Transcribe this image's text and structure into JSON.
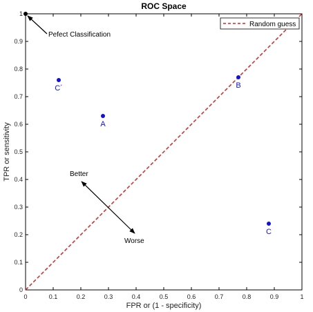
{
  "chart_data": {
    "type": "scatter",
    "title": "ROC Space",
    "xlabel": "FPR or (1 - specificity)",
    "ylabel": "TPR or sensitivity",
    "xlim": [
      0,
      1
    ],
    "ylim": [
      0,
      1
    ],
    "xticks": [
      "0",
      "0.1",
      "0.2",
      "0.3",
      "0.4",
      "0.5",
      "0.6",
      "0.7",
      "0.8",
      "0.9",
      "1"
    ],
    "yticks": [
      "0",
      "0.1",
      "0.2",
      "0.3",
      "0.4",
      "0.5",
      "0.6",
      "0.7",
      "0.8",
      "0.9",
      "1"
    ],
    "grid": false,
    "legend": {
      "position": "top-right",
      "entries": [
        "Random guess"
      ]
    },
    "series": [
      {
        "name": "Random guess",
        "type": "line",
        "style": "dashed",
        "color": "#e32020",
        "x": [
          0,
          1
        ],
        "y": [
          0,
          1
        ]
      }
    ],
    "points": [
      {
        "label": "A",
        "x": 0.28,
        "y": 0.63,
        "color": "#1010d8"
      },
      {
        "label": "B",
        "x": 0.77,
        "y": 0.77,
        "color": "#1010d8"
      },
      {
        "label": "C",
        "x": 0.88,
        "y": 0.24,
        "color": "#1010d8"
      },
      {
        "label": "C´",
        "x": 0.12,
        "y": 0.76,
        "color": "#1010d8"
      }
    ],
    "perfect_point": {
      "x": 0,
      "y": 1,
      "color": "#000000"
    },
    "annotations": [
      {
        "text": "Pefect Classification",
        "arrow_from": [
          0.085,
          0.93
        ],
        "arrow_to": [
          0.005,
          0.995
        ]
      },
      {
        "text": "Better",
        "arrow_from": [
          0.2,
          0.35
        ],
        "arrow_to": [
          0.2,
          0.35
        ]
      },
      {
        "text": "Worse",
        "arrow_from": [
          0.4,
          0.2
        ],
        "arrow_to": [
          0.4,
          0.2
        ]
      }
    ]
  }
}
